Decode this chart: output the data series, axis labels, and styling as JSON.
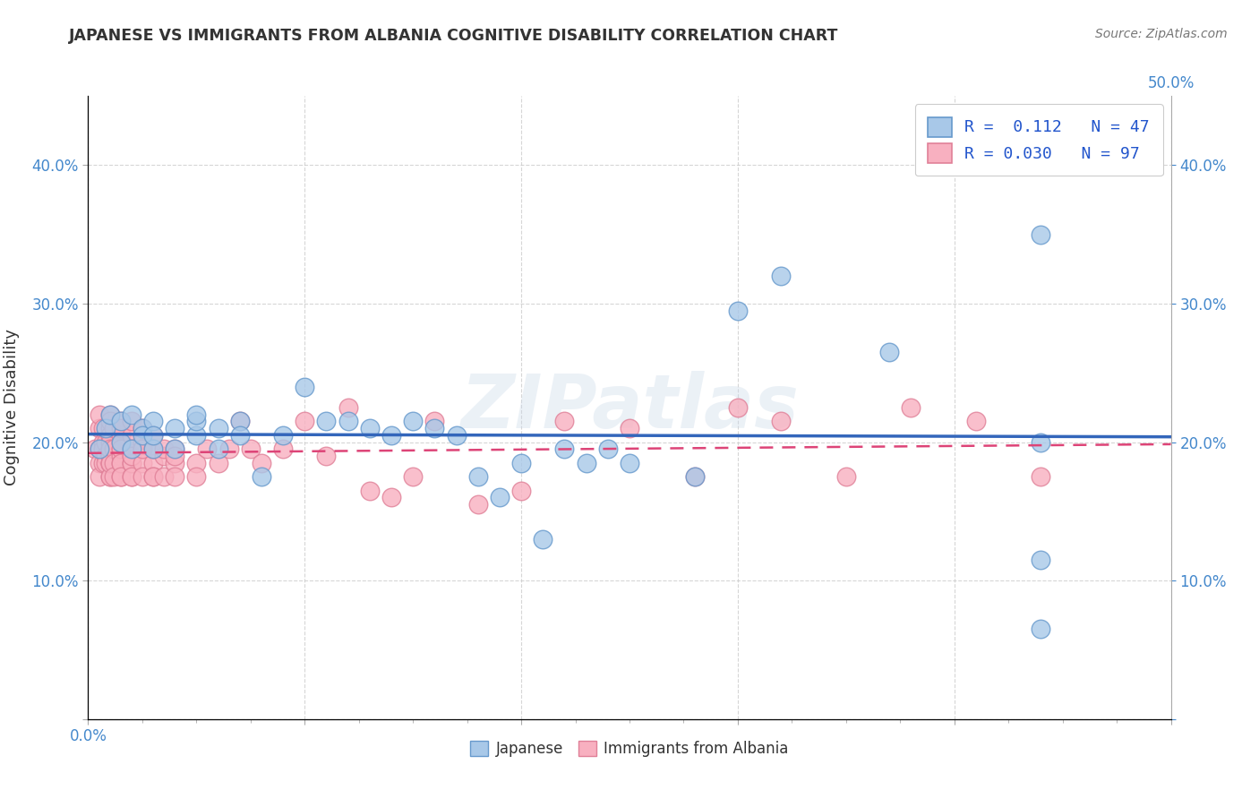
{
  "title": "JAPANESE VS IMMIGRANTS FROM ALBANIA COGNITIVE DISABILITY CORRELATION CHART",
  "source": "Source: ZipAtlas.com",
  "xlabel": "",
  "ylabel": "Cognitive Disability",
  "xlim": [
    0.0,
    0.5
  ],
  "ylim": [
    0.0,
    0.45
  ],
  "xticks": [
    0.0,
    0.1,
    0.2,
    0.3,
    0.4,
    0.5
  ],
  "yticks": [
    0.0,
    0.1,
    0.2,
    0.3,
    0.4
  ],
  "xticklabels": [
    "0.0%",
    "",
    "",
    "",
    "",
    ""
  ],
  "yticklabels": [
    "",
    "10.0%",
    "20.0%",
    "30.0%",
    "40.0%"
  ],
  "x_right_labels": [
    "",
    "",
    "",
    "",
    "",
    "50.0%"
  ],
  "y_right_labels": [
    "",
    "10.0%",
    "20.0%",
    "30.0%",
    "40.0%"
  ],
  "legend_r_japanese": "0.112",
  "legend_n_japanese": "47",
  "legend_r_albania": "0.030",
  "legend_n_albania": "97",
  "japanese_color": "#a8c8e8",
  "albania_color": "#f8b0c0",
  "japanese_edge": "#6699cc",
  "albania_edge": "#e08098",
  "trendline_japanese_color": "#3366bb",
  "trendline_albania_color": "#dd4477",
  "background_color": "#ffffff",
  "grid_color": "#cccccc",
  "watermark": "ZIPatlas",
  "japanese_x": [
    0.005,
    0.008,
    0.01,
    0.015,
    0.015,
    0.02,
    0.02,
    0.025,
    0.025,
    0.03,
    0.03,
    0.03,
    0.04,
    0.04,
    0.05,
    0.05,
    0.05,
    0.06,
    0.06,
    0.07,
    0.07,
    0.08,
    0.09,
    0.1,
    0.11,
    0.12,
    0.13,
    0.14,
    0.15,
    0.16,
    0.17,
    0.18,
    0.19,
    0.2,
    0.21,
    0.22,
    0.23,
    0.24,
    0.25,
    0.28,
    0.3,
    0.32,
    0.37,
    0.44,
    0.44,
    0.44,
    0.44
  ],
  "japanese_y": [
    0.195,
    0.21,
    0.22,
    0.2,
    0.215,
    0.22,
    0.195,
    0.21,
    0.205,
    0.195,
    0.215,
    0.205,
    0.21,
    0.195,
    0.205,
    0.215,
    0.22,
    0.195,
    0.21,
    0.215,
    0.205,
    0.175,
    0.205,
    0.24,
    0.215,
    0.215,
    0.21,
    0.205,
    0.215,
    0.21,
    0.205,
    0.175,
    0.16,
    0.185,
    0.13,
    0.195,
    0.185,
    0.195,
    0.185,
    0.175,
    0.295,
    0.32,
    0.265,
    0.35,
    0.2,
    0.115,
    0.065
  ],
  "albania_x": [
    0.003,
    0.005,
    0.005,
    0.005,
    0.005,
    0.005,
    0.007,
    0.007,
    0.007,
    0.007,
    0.008,
    0.008,
    0.008,
    0.01,
    0.01,
    0.01,
    0.01,
    0.01,
    0.01,
    0.01,
    0.01,
    0.01,
    0.01,
    0.01,
    0.01,
    0.01,
    0.01,
    0.012,
    0.012,
    0.012,
    0.012,
    0.015,
    0.015,
    0.015,
    0.015,
    0.015,
    0.015,
    0.015,
    0.015,
    0.015,
    0.015,
    0.015,
    0.02,
    0.02,
    0.02,
    0.02,
    0.02,
    0.02,
    0.02,
    0.02,
    0.02,
    0.02,
    0.025,
    0.025,
    0.025,
    0.025,
    0.025,
    0.025,
    0.03,
    0.03,
    0.03,
    0.03,
    0.03,
    0.035,
    0.035,
    0.035,
    0.04,
    0.04,
    0.04,
    0.04,
    0.05,
    0.05,
    0.055,
    0.06,
    0.065,
    0.07,
    0.075,
    0.08,
    0.09,
    0.1,
    0.11,
    0.12,
    0.13,
    0.14,
    0.15,
    0.16,
    0.18,
    0.2,
    0.22,
    0.25,
    0.28,
    0.3,
    0.32,
    0.35,
    0.38,
    0.41,
    0.44
  ],
  "albania_y": [
    0.195,
    0.21,
    0.22,
    0.195,
    0.185,
    0.175,
    0.2,
    0.21,
    0.195,
    0.185,
    0.19,
    0.2,
    0.185,
    0.21,
    0.22,
    0.205,
    0.19,
    0.185,
    0.175,
    0.195,
    0.205,
    0.215,
    0.2,
    0.185,
    0.175,
    0.195,
    0.185,
    0.21,
    0.195,
    0.185,
    0.175,
    0.195,
    0.205,
    0.215,
    0.19,
    0.185,
    0.175,
    0.2,
    0.195,
    0.185,
    0.175,
    0.21,
    0.19,
    0.195,
    0.185,
    0.175,
    0.205,
    0.215,
    0.195,
    0.185,
    0.175,
    0.19,
    0.195,
    0.185,
    0.175,
    0.2,
    0.195,
    0.21,
    0.185,
    0.195,
    0.175,
    0.205,
    0.175,
    0.19,
    0.195,
    0.175,
    0.185,
    0.195,
    0.175,
    0.19,
    0.185,
    0.175,
    0.195,
    0.185,
    0.195,
    0.215,
    0.195,
    0.185,
    0.195,
    0.215,
    0.19,
    0.225,
    0.165,
    0.16,
    0.175,
    0.215,
    0.155,
    0.165,
    0.215,
    0.21,
    0.175,
    0.225,
    0.215,
    0.175,
    0.225,
    0.215,
    0.175
  ]
}
